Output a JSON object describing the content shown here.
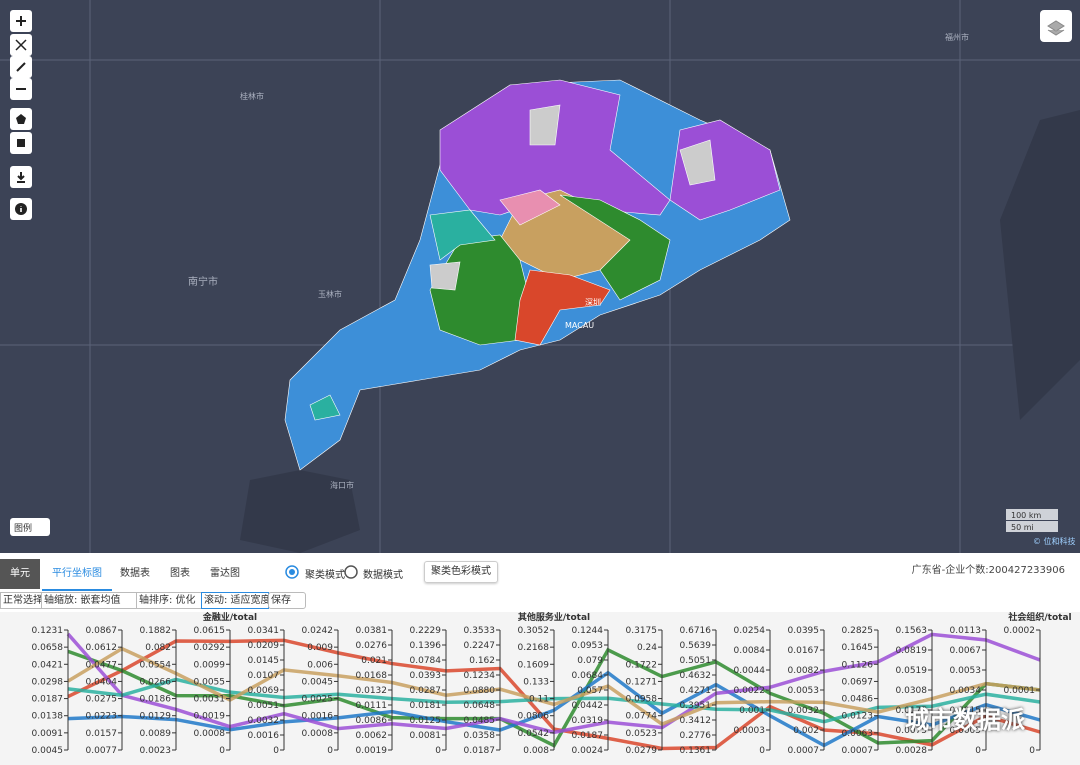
{
  "map": {
    "labels": [
      "福州市",
      "桂林市",
      "南宁市",
      "玉林市",
      "海口市",
      "深圳",
      "MACAU"
    ],
    "legend_button": "图例",
    "scale": [
      "100 km",
      "50 mi"
    ],
    "attribution": "© 位和科技"
  },
  "panel": {
    "tabs": [
      "单元",
      "平行坐标图",
      "数据表",
      "图表",
      "雷达图"
    ],
    "modes": [
      "聚类模式",
      "数据模式"
    ],
    "color_button": "聚类色彩模式",
    "info": "广东省-企业个数:200427233906",
    "toolbar": [
      "正常选择",
      "轴缩放: 嵌套均值",
      "轴排序: 优化",
      "滚动: 适应宽度",
      "保存"
    ],
    "watermark": "城市数据派"
  },
  "chart_data": {
    "type": "parallel",
    "axes": [
      {
        "ticks": [
          0.1231,
          0.0658,
          0.0421,
          0.0298,
          0.0187,
          0.0138,
          0.0091,
          0.0045
        ]
      },
      {
        "ticks": [
          0.0867,
          0.0612,
          0.0477,
          0.0404,
          0.0275,
          0.0223,
          0.0157,
          0.0077
        ]
      },
      {
        "ticks": [
          0.1882,
          0.082,
          0.0554,
          0.0266,
          0.0186,
          0.0129,
          0.0089,
          0.0023
        ]
      },
      {
        "name": "金融业/total",
        "ticks": [
          0.0615,
          0.0292,
          0.0099,
          0.0055,
          0.0031,
          0.0019,
          0.0008,
          0
        ]
      },
      {
        "ticks": [
          0.0341,
          0.0209,
          0.0145,
          0.0107,
          0.0069,
          0.0051,
          0.0032,
          0.0016,
          0
        ]
      },
      {
        "ticks": [
          0.0242,
          0.009,
          0.006,
          0.0045,
          0.0025,
          0.0016,
          0.0008,
          0
        ]
      },
      {
        "ticks": [
          0.0381,
          0.0276,
          0.021,
          0.0168,
          0.0132,
          0.0111,
          0.0086,
          0.0062,
          0.0019
        ]
      },
      {
        "ticks": [
          0.2229,
          0.1396,
          0.0784,
          0.0393,
          0.0287,
          0.0181,
          0.0125,
          0.0081,
          0
        ]
      },
      {
        "ticks": [
          0.3533,
          0.2247,
          0.162,
          0.1234,
          {
            "value": 0.088,
            "label": "0.0880"
          },
          0.0648,
          0.0485,
          0.0358,
          0.0187
        ]
      },
      {
        "name": "其他服务业/total",
        "ticks": [
          0.3052,
          0.2168,
          0.1609,
          0.133,
          0.11,
          0.0806,
          0.0542,
          0.008
        ]
      },
      {
        "ticks": [
          0.1244,
          0.0953,
          0.079,
          0.0684,
          0.057,
          0.0442,
          0.0319,
          0.0187,
          0.0024
        ]
      },
      {
        "ticks": [
          0.3175,
          0.24,
          0.1722,
          0.1271,
          0.0958,
          0.0774,
          0.0523,
          0.0279
        ]
      },
      {
        "ticks": [
          0.6716,
          0.5639,
          0.5051,
          0.4632,
          0.4271,
          0.3951,
          0.3412,
          0.2776,
          0.1361
        ]
      },
      {
        "ticks": [
          0.0254,
          0.0084,
          0.0044,
          0.0022,
          0.001,
          0.0003,
          0
        ]
      },
      {
        "ticks": [
          0.0395,
          0.0167,
          0.0082,
          0.0053,
          0.0032,
          0.002,
          0.0007
        ]
      },
      {
        "ticks": [
          0.2825,
          0.1645,
          0.1126,
          0.0697,
          0.0486,
          0.0123,
          0.0063,
          0.0007
        ]
      },
      {
        "ticks": [
          0.1563,
          0.0819,
          0.0519,
          0.0308,
          0.0175,
          0.0075,
          0.0028
        ]
      },
      {
        "ticks": [
          0.0113,
          0.0067,
          0.0053,
          0.0034,
          0.0015,
          0.0005,
          0
        ]
      },
      {
        "name": "社会组织/total",
        "ticks": [
          0.0002,
          0.0001,
          0
        ]
      }
    ],
    "series": [
      {
        "color": "#d9472b",
        "values": [
          0.02,
          0.045,
          0.12,
          0.04,
          0.025,
          0.008,
          0.02,
          0.05,
          0.14,
          0.06,
          0.015,
          0.03,
          0.16,
          0.0012,
          0.002,
          0.006,
          0.004,
          0.0012,
          3e-05
        ]
      },
      {
        "color": "#2e8b2e",
        "values": [
          0.06,
          0.045,
          0.02,
          0.0035,
          0.005,
          0.0025,
          0.009,
          0.013,
          0.05,
          0.02,
          0.09,
          0.14,
          0.5,
          0.002,
          0.003,
          0.003,
          0.005,
          0.004,
          0.0001
        ]
      },
      {
        "color": "#1f78c8",
        "values": [
          0.013,
          0.022,
          0.012,
          0.001,
          0.003,
          0.0015,
          0.01,
          0.012,
          0.04,
          0.09,
          0.07,
          0.08,
          0.44,
          0.0008,
          0.001,
          0.012,
          0.01,
          0.002,
          5e-05
        ]
      },
      {
        "color": "#9b4fd6",
        "values": [
          0.11,
          0.03,
          0.015,
          0.0012,
          0.004,
          0.001,
          0.008,
          0.01,
          0.05,
          0.055,
          0.03,
          0.06,
          0.42,
          0.0025,
          0.008,
          0.12,
          0.14,
          0.009,
          0.00015
        ]
      },
      {
        "color": "#2ab0a0",
        "values": [
          0.025,
          0.03,
          0.03,
          0.004,
          0.006,
          0.003,
          0.012,
          0.02,
          0.07,
          0.11,
          0.05,
          0.09,
          0.38,
          0.001,
          0.0025,
          0.03,
          0.02,
          0.003,
          8e-05
        ]
      },
      {
        "color": "#c8a060",
        "values": [
          0.03,
          0.06,
          0.04,
          0.003,
          0.012,
          0.005,
          0.015,
          0.025,
          0.09,
          0.1,
          0.06,
          0.065,
          0.4,
          0.0015,
          0.004,
          0.02,
          0.025,
          0.004,
          0.0001
        ]
      }
    ]
  }
}
